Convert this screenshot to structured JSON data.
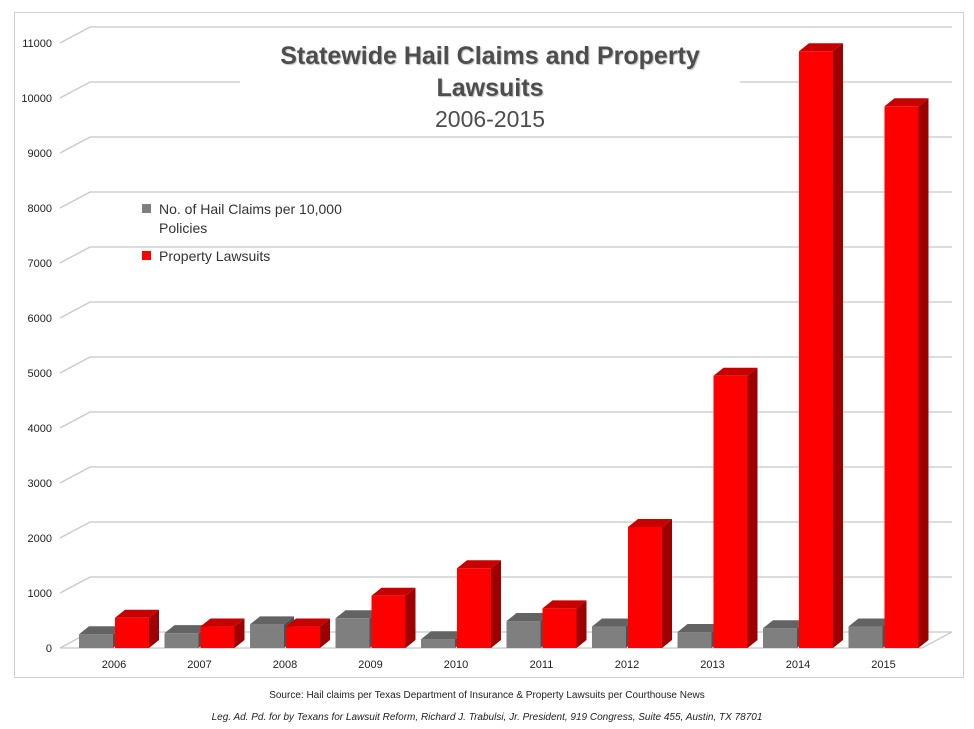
{
  "chart_data": {
    "type": "bar",
    "title": "Statewide Hail Claims and Property Lawsuits",
    "subtitle": "2006-2015",
    "categories": [
      "2006",
      "2007",
      "2008",
      "2009",
      "2010",
      "2011",
      "2012",
      "2013",
      "2014",
      "2015"
    ],
    "series": [
      {
        "name": "No. of Hail Claims per 10,000 Policies",
        "color": "#7f7f7f",
        "values": [
          250,
          270,
          430,
          540,
          160,
          490,
          390,
          290,
          360,
          390
        ]
      },
      {
        "name": "Property Lawsuits",
        "color": "#ff0000",
        "values": [
          550,
          390,
          390,
          950,
          1450,
          720,
          2200,
          4950,
          10850,
          9850
        ]
      }
    ],
    "yticks": [
      0,
      1000,
      2000,
      3000,
      4000,
      5000,
      6000,
      7000,
      8000,
      9000,
      10000,
      11000
    ],
    "ylim": [
      0,
      11000
    ],
    "grid": true,
    "legend_position": "top-left"
  },
  "footer": {
    "source": "Source: Hail claims per Texas Department of Insurance & Property Lawsuits per Courthouse News",
    "note": "Leg. Ad. Pd. for by Texans for Lawsuit Reform, Richard J. Trabulsi, Jr. President, 919 Congress, Suite 455, Austin, TX 78701"
  }
}
